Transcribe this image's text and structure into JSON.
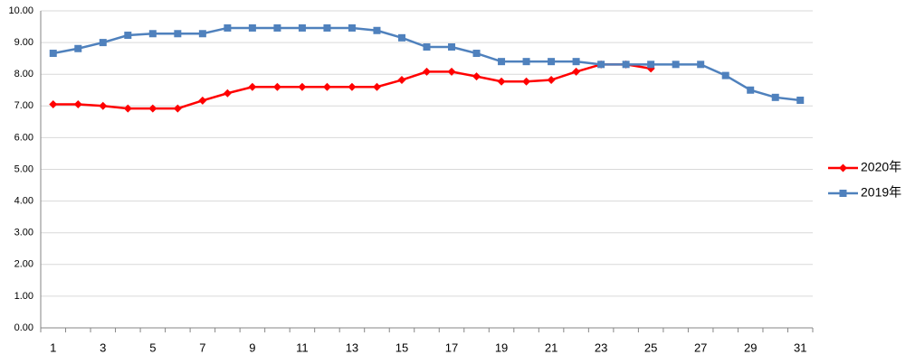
{
  "chart_data": {
    "type": "line",
    "categories": [
      "1",
      null,
      "3",
      null,
      "5",
      null,
      "7",
      null,
      "9",
      null,
      "11",
      null,
      "13",
      null,
      "15",
      null,
      "17",
      null,
      "19",
      null,
      "21",
      null,
      "23",
      null,
      "25",
      null,
      "27",
      null,
      "29",
      null,
      "31"
    ],
    "series": [
      {
        "name": "2020年",
        "color": "#ff0000",
        "marker": "diamond",
        "values": [
          7.05,
          7.05,
          7.0,
          6.92,
          6.92,
          6.92,
          7.17,
          7.4,
          7.6,
          7.6,
          7.6,
          7.6,
          7.6,
          7.6,
          7.82,
          8.08,
          8.08,
          7.93,
          7.77,
          7.77,
          7.82,
          8.08,
          8.31,
          8.31,
          8.18,
          null,
          null,
          null,
          null,
          null,
          null
        ]
      },
      {
        "name": "2019年",
        "color": "#4f81bd",
        "marker": "square",
        "values": [
          8.66,
          8.81,
          9.0,
          9.23,
          9.28,
          9.28,
          9.28,
          9.46,
          9.46,
          9.46,
          9.46,
          9.46,
          9.46,
          9.38,
          9.15,
          8.86,
          8.86,
          8.66,
          8.4,
          8.4,
          8.4,
          8.4,
          8.31,
          8.31,
          8.31,
          8.31,
          8.31,
          7.96,
          7.5,
          7.27,
          7.18
        ]
      }
    ],
    "ylim": [
      0,
      10
    ],
    "yticks": [
      {
        "value": 0,
        "label": "0.00"
      },
      {
        "value": 1,
        "label": "1.00"
      },
      {
        "value": 2,
        "label": "2.00"
      },
      {
        "value": 3,
        "label": "3.00"
      },
      {
        "value": 4,
        "label": "4.00"
      },
      {
        "value": 5,
        "label": "5.00"
      },
      {
        "value": 6,
        "label": "6.00"
      },
      {
        "value": 7,
        "label": "7.00"
      },
      {
        "value": 8,
        "label": "8.00"
      },
      {
        "value": 9,
        "label": "9.00"
      },
      {
        "value": 10,
        "label": "10.00"
      }
    ],
    "grid": true,
    "legend": "right"
  }
}
